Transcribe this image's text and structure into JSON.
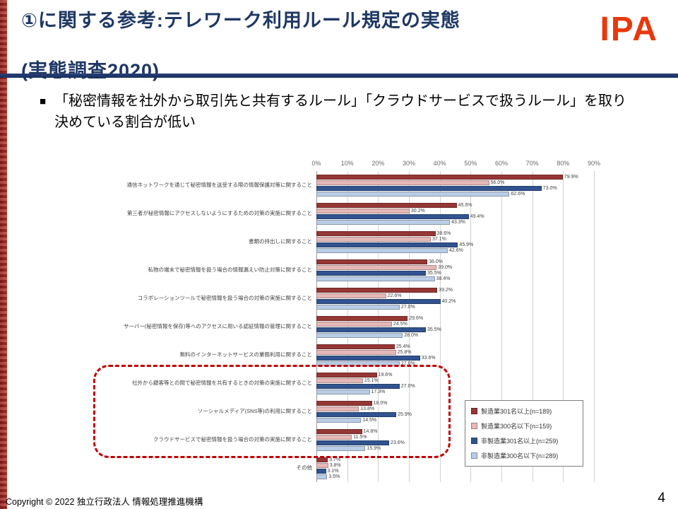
{
  "header": {
    "title_line1": "①に関する参考:テレワーク利用ルール規定の実態",
    "title_line2": "(実態調査2020)",
    "logo_text": "IPA"
  },
  "bullet": {
    "marker": "■",
    "text": "「秘密情報を社外から取引先と共有するルール」「クラウドサービスで扱うルール」を取り決めている割合が低い"
  },
  "colors": {
    "title_navy": "#1f3864",
    "brand_red": "#e8380d",
    "highlight_dashed_red": "#c00000"
  },
  "chart_data": {
    "type": "bar",
    "orientation": "horizontal",
    "title": "",
    "xlabel": "",
    "ylabel": "",
    "xlim": [
      0,
      90
    ],
    "xmax": 90,
    "grid": true,
    "legend_position": "right-bottom",
    "x_ticks": [
      "0%",
      "10%",
      "20%",
      "30%",
      "40%",
      "50%",
      "60%",
      "70%",
      "80%",
      "90%"
    ],
    "categories": [
      "通信ネットワークを通じて秘密情報を送受する際の情報保護対策に関すること",
      "第三者が秘密情報にアクセスしないようにするための対策の実施に関すること",
      "書類の持出しに関すること",
      "私物の端末で秘密情報を扱う場合の情報漏えい防止対策に関すること",
      "コラボレーションツールで秘密情報を扱う場合の対策の実施に関すること",
      "サーバー(秘密情報を保存)等へのアクセスに用いる認証情報の管理に関すること",
      "無料のインターネットサービスの業務利用に関すること",
      "社外から顧客等との間で秘密情報を共有するときの対策の実施に関すること",
      "ソーシャルメディア(SNS等)の利用に関すること",
      "クラウドサービスで秘密情報を扱う場合の対策の実施に関すること",
      "その他"
    ],
    "series": [
      {
        "name": "製造業301名以上(n=189)",
        "color": "#953735",
        "values": [
          79.9,
          45.5,
          38.6,
          36.0,
          39.2,
          29.6,
          25.4,
          19.6,
          18.0,
          14.8,
          3.7
        ]
      },
      {
        "name": "製造業300名以下(n=159)",
        "color": "#e5b8b7",
        "values": [
          56.0,
          30.2,
          37.1,
          39.0,
          22.6,
          24.5,
          25.8,
          15.1,
          13.8,
          11.5,
          3.8
        ]
      },
      {
        "name": "非製造業301名以上(n=259)",
        "color": "#31538f",
        "values": [
          73.0,
          49.4,
          45.9,
          35.5,
          40.2,
          35.5,
          33.6,
          27.0,
          25.9,
          23.6,
          3.1
        ]
      },
      {
        "name": "非製造業300名以下(n=289)",
        "color": "#b9cde5",
        "values": [
          62.6,
          43.3,
          42.6,
          38.4,
          27.0,
          28.0,
          27.0,
          17.3,
          14.5,
          15.9,
          3.5
        ]
      }
    ],
    "highlight": {
      "description": "red dashed rounded box around the three low-rate rule categories",
      "category_indexes": [
        7,
        8,
        9
      ]
    }
  },
  "footer": {
    "copyright": "Copyright © 2022 独立行政法人 情報処理推進機構",
    "page_number": "4"
  }
}
